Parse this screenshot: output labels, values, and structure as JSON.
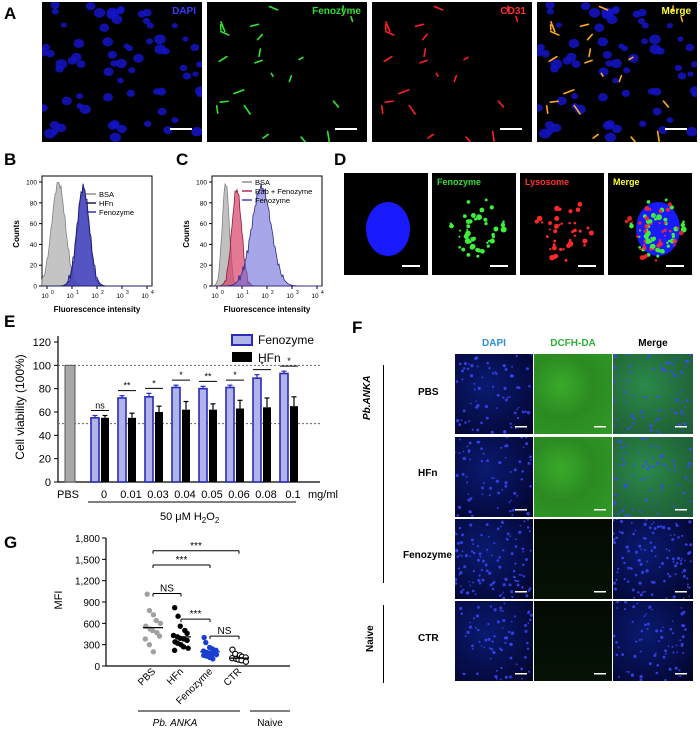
{
  "panels": {
    "A": {
      "label": "A",
      "tiles": [
        {
          "title": "DAPI",
          "color": "#3a3aff"
        },
        {
          "title": "Fenozyme",
          "color": "#33dd33"
        },
        {
          "title": "CD31",
          "color": "#ff3030"
        },
        {
          "title": "Merge",
          "color": "#ffff33"
        }
      ]
    },
    "B": {
      "label": "B",
      "ylabel": "Counts",
      "xlabel": "Fluorescence intensity",
      "yticks": [
        "0",
        "20",
        "40",
        "60",
        "80",
        "100"
      ],
      "xticks": [
        "10",
        "10",
        "10",
        "10",
        "10"
      ],
      "xexp": [
        "0",
        "1",
        "2",
        "3",
        "4"
      ],
      "legend": [
        "BSA",
        "HFn",
        "Fenozyme"
      ]
    },
    "C": {
      "label": "C",
      "ylabel": "Counts",
      "xlabel": "Fluorescence intensity",
      "yticks": [
        "0",
        "20",
        "40",
        "60",
        "80",
        "100"
      ],
      "xticks": [
        "10",
        "10",
        "10",
        "10",
        "10"
      ],
      "xexp": [
        "0",
        "1",
        "2",
        "3",
        "4"
      ],
      "legend": [
        "BSA",
        "Rab + Fenozyme",
        "Fenozyme"
      ]
    },
    "D": {
      "label": "D",
      "tiles": [
        {
          "title": "DAPI",
          "color": "#3a3aff"
        },
        {
          "title": "Fenozyme",
          "color": "#33dd33"
        },
        {
          "title": "Lysosome",
          "color": "#ff3030"
        },
        {
          "title": "Merge",
          "color": "#ffff33"
        }
      ]
    },
    "E": {
      "label": "E",
      "ylabel": "Cell viability (100%)",
      "xunit": "mg/ml",
      "treatment": "50 μM H",
      "treatment_sub": "2",
      "treatment_tail": "O",
      "treatment_sub2": "2",
      "legend": [
        "Fenozyme",
        "HFn"
      ],
      "yticks": [
        "0",
        "20",
        "40",
        "60",
        "80",
        "100",
        "120"
      ],
      "significance": [
        "ns",
        "**",
        "*",
        "*",
        "**",
        "*",
        "*",
        "*"
      ]
    },
    "F": {
      "label": "F",
      "columns": [
        "DAPI",
        "DCFH-DA",
        "Merge"
      ],
      "column_colors": [
        "#2b8fd6",
        "#2fae3a",
        "#000000"
      ],
      "rows": [
        "PBS",
        "HFn",
        "Fenozyme",
        "CTR"
      ],
      "group1": "Pb.ANKA",
      "group2": "Naive"
    },
    "G": {
      "label": "G",
      "ylabel": "MFI",
      "yticks": [
        "0",
        "300",
        "600",
        "900",
        "1,200",
        "1,500",
        "1,800"
      ],
      "categories": [
        "PBS",
        "HFn",
        "Fenozyme",
        "CTR"
      ],
      "sig": [
        "NS",
        "***",
        "***",
        "***",
        "NS"
      ],
      "group1": "Pb. ANKA",
      "group2": "Naive"
    }
  },
  "chart_data": [
    {
      "type": "bar",
      "title": "",
      "ylabel": "Cell viability (100%)",
      "xlabel": "50 μM H2O2",
      "ylim": [
        0,
        120
      ],
      "categories": [
        "PBS",
        "0",
        "0.01",
        "0.03",
        "0.04",
        "0.05",
        "0.06",
        "0.08",
        "0.1"
      ],
      "series": [
        {
          "name": "Fenozyme",
          "values": [
            100,
            55,
            72,
            73,
            81,
            80,
            81,
            89,
            93
          ],
          "errors": [
            0,
            2,
            2,
            3,
            2,
            2,
            2,
            3,
            2
          ]
        },
        {
          "name": "HFn",
          "values": [
            null,
            55,
            55,
            60,
            62,
            62,
            63,
            64,
            65
          ],
          "errors": [
            0,
            2,
            4,
            5,
            7,
            5,
            7,
            8,
            8
          ]
        }
      ],
      "reference_lines": [
        100,
        50
      ]
    },
    {
      "type": "scatter",
      "ylabel": "MFI",
      "ylim": [
        0,
        1800
      ],
      "categories": [
        "PBS",
        "HFn",
        "Fenozyme",
        "CTR"
      ],
      "means": [
        540,
        410,
        200,
        110
      ],
      "points": [
        [
          1010,
          780,
          720,
          640,
          600,
          560,
          520,
          500,
          470,
          420,
          380,
          300,
          200
        ],
        [
          820,
          700,
          560,
          500,
          460,
          430,
          410,
          390,
          380,
          360,
          340,
          320,
          300,
          270,
          250,
          220
        ],
        [
          400,
          330,
          260,
          240,
          220,
          210,
          190,
          180,
          170,
          160,
          150,
          140,
          120,
          100
        ],
        [
          230,
          170,
          150,
          130,
          120,
          110,
          100,
          90,
          80,
          60
        ]
      ],
      "colors": [
        "#a0a0a0",
        "#000000",
        "#1a3fd0",
        "#000000"
      ]
    },
    {
      "type": "line",
      "xlabel": "Fluorescence intensity",
      "ylabel": "Counts",
      "ylim": [
        0,
        100
      ],
      "series": [
        {
          "name": "BSA",
          "peak_log": 0.6,
          "peak": 94
        },
        {
          "name": "HFn",
          "peak_log": 1.5,
          "peak": 88
        },
        {
          "name": "Fenozyme",
          "peak_log": 1.5,
          "peak": 90
        }
      ]
    },
    {
      "type": "line",
      "xlabel": "Fluorescence intensity",
      "ylabel": "Counts",
      "ylim": [
        0,
        100
      ],
      "series": [
        {
          "name": "BSA",
          "peak_log": 0.5,
          "peak": 94
        },
        {
          "name": "Rab + Fenozyme",
          "peak_log": 0.9,
          "peak": 88
        },
        {
          "name": "Fenozyme",
          "peak_log": 1.8,
          "peak": 90
        }
      ]
    }
  ]
}
